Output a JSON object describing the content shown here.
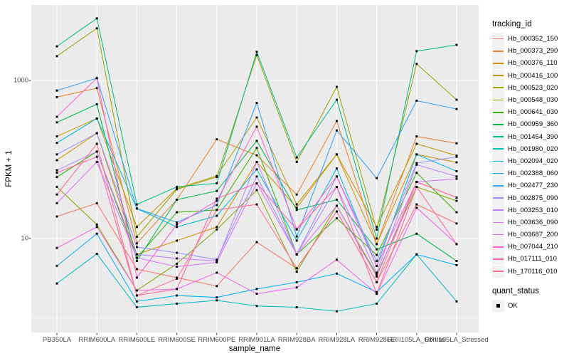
{
  "figure": {
    "background": "#FFFFFF",
    "panel_background": "#EBEBEB",
    "grid_color": "#FFFFFF",
    "tick_text_color": "#4D4D4D",
    "point_color": "#000000"
  },
  "chart_data": {
    "type": "line",
    "title": "",
    "xlabel": "sample_name",
    "ylabel": "FPKM + 1",
    "y_scale": "log10",
    "y_major_ticks": [
      10,
      1000
    ],
    "y_minor_gridlines": [
      1,
      100
    ],
    "ylim": [
      0.65,
      8500
    ],
    "grid": true,
    "legend_position": "right",
    "legend_title": "tracking_id",
    "x_categories": [
      "PB350LA",
      "RRIM600LA",
      "RRIM600LE",
      "RRIM600SE",
      "RRIM600PE",
      "RRIM901LA",
      "RRIM928BA",
      "RRIM928LA",
      "RRIM928LE",
      "RRII105LA_Control",
      "RRII105LA_Stressed"
    ],
    "series": [
      {
        "name": "Hb_000352_150",
        "color": "#F8766D",
        "values": [
          19,
          28,
          4.1,
          3.2,
          2.5,
          9,
          4.2,
          22,
          2.8,
          27,
          15.5
        ]
      },
      {
        "name": "Hb_000373_290",
        "color": "#EA8331",
        "values": [
          616,
          800,
          8.7,
          31,
          180,
          113,
          36,
          307,
          8.5,
          196,
          160
        ]
      },
      {
        "name": "Hb_000376_110",
        "color": "#D89000",
        "values": [
          98,
          215,
          6.3,
          9.4,
          14,
          93,
          24.5,
          116,
          8.5,
          116,
          92
        ]
      },
      {
        "name": "Hb_000416_100",
        "color": "#C09B00",
        "values": [
          196,
          330,
          14,
          43,
          62,
          340,
          27,
          116,
          14,
          158,
          112
        ]
      },
      {
        "name": "Hb_000523_020",
        "color": "#A3A500",
        "values": [
          2030,
          4570,
          10.5,
          42,
          60,
          2100,
          93,
          830,
          13,
          1620,
          570
        ]
      },
      {
        "name": "Hb_000548_030",
        "color": "#7CAE00",
        "values": [
          45,
          15,
          2.2,
          4.8,
          13,
          41,
          3.8,
          26,
          3.5,
          45,
          30
        ]
      },
      {
        "name": "Hb_000641_030",
        "color": "#39B600",
        "values": [
          60,
          126,
          5.7,
          21.5,
          23,
          140,
          6.3,
          18,
          6.2,
          68,
          21.5
        ]
      },
      {
        "name": "Hb_000959_360",
        "color": "#00BB4E",
        "values": [
          295,
          500,
          5.2,
          31,
          40,
          172,
          23,
          31,
          7.3,
          11.5,
          5.2
        ]
      },
      {
        "name": "Hb_001454_390",
        "color": "#00C087",
        "values": [
          2700,
          6100,
          27,
          45,
          50,
          2300,
          106,
          570,
          10,
          2350,
          2820
        ]
      },
      {
        "name": "Hb_001980_020",
        "color": "#00C0B8",
        "values": [
          2.7,
          6.4,
          1.35,
          1.5,
          1.65,
          1.4,
          1.35,
          1.2,
          1.5,
          6.3,
          1.6
        ]
      },
      {
        "name": "Hb_002094_020",
        "color": "#00BCD8",
        "values": [
          162,
          330,
          24,
          14,
          19.4,
          75,
          9.4,
          77,
          4.5,
          116,
          71
        ]
      },
      {
        "name": "Hb_002388_060",
        "color": "#00B0F6",
        "values": [
          4.5,
          11.5,
          1.6,
          1.9,
          1.8,
          2.3,
          2.8,
          3.6,
          2.1,
          6.3,
          4.6
        ]
      },
      {
        "name": "Hb_002477_230",
        "color": "#35A2FF",
        "values": [
          745,
          1070,
          24,
          16,
          26.5,
          520,
          10.6,
          233,
          58,
          555,
          435
        ]
      },
      {
        "name": "Hb_002875_090",
        "color": "#9590FF",
        "values": [
          116,
          215,
          7.8,
          6.6,
          5.4,
          61,
          6.3,
          61,
          5.2,
          90,
          108
        ]
      },
      {
        "name": "Hb_003253_010",
        "color": "#B983FF",
        "values": [
          73,
          126,
          6.3,
          5.6,
          5.2,
          93,
          6.3,
          45,
          3.7,
          86,
          61
        ]
      },
      {
        "name": "Hb_003636_090",
        "color": "#D874F8",
        "values": [
          28,
          93,
          5.7,
          4.4,
          5.0,
          50,
          6.3,
          26,
          3.3,
          52,
          57
        ]
      },
      {
        "name": "Hb_003687_200",
        "color": "#F265E8",
        "values": [
          7.6,
          14,
          2.2,
          2.3,
          3.7,
          2.0,
          2.4,
          5.4,
          2.0,
          24.5,
          8.5
        ]
      },
      {
        "name": "Hb_007044_210",
        "color": "#FC61CD",
        "values": [
          347,
          1070,
          3.2,
          15,
          30,
          260,
          13.1,
          61,
          4.5,
          52,
          33
        ]
      },
      {
        "name": "Hb_017111_010",
        "color": "#FF62A8",
        "values": [
          68,
          108,
          1.9,
          2.3,
          32,
          50,
          13,
          45,
          2.0,
          45,
          8.5
        ]
      },
      {
        "name": "Hb_170116_010",
        "color": "#FF6E8F",
        "values": [
          36,
          158,
          1.9,
          3.1,
          23,
          27,
          4.2,
          22,
          2.8,
          52,
          33
        ]
      }
    ],
    "quant_status": {
      "title": "quant_status",
      "items": [
        {
          "label": "OK",
          "shape": "square",
          "color": "#000000"
        }
      ]
    }
  }
}
